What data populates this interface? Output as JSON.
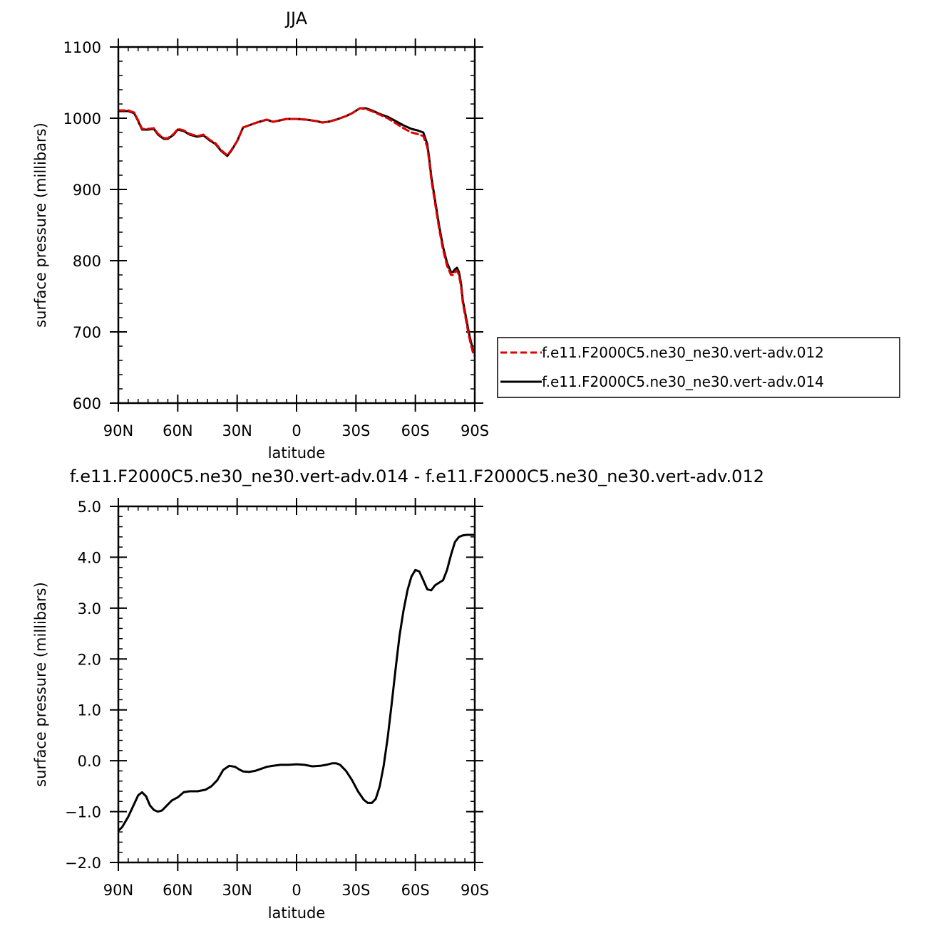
{
  "chart_data": [
    {
      "type": "line",
      "title": "JJA",
      "xlabel": "latitude",
      "ylabel": "surface pressure (millibars)",
      "xlim": [
        90,
        -90
      ],
      "ylim": [
        600,
        1100
      ],
      "xticks": [
        90,
        60,
        30,
        0,
        -30,
        -60,
        -90
      ],
      "xtick_labels": [
        "90N",
        "60N",
        "30N",
        "0",
        "30S",
        "60S",
        "90S"
      ],
      "yticks": [
        600,
        700,
        800,
        900,
        1000,
        1100
      ],
      "ytick_labels": [
        "600",
        "700",
        "800",
        "900",
        "1000",
        "1100"
      ],
      "grid": false,
      "legend_position": "right",
      "series": [
        {
          "name": "f.e11.F2000C5.ne30_ne30.vert-adv.012",
          "color": "#e00000",
          "dash": "dashed",
          "x": [
            90,
            85,
            82,
            80,
            78,
            75,
            72,
            70,
            67,
            65,
            62,
            60,
            57,
            54,
            50,
            47,
            44,
            41,
            38,
            35,
            33,
            30,
            27,
            24,
            20,
            15,
            12,
            10,
            5,
            0,
            -5,
            -10,
            -13,
            -16,
            -20,
            -25,
            -28,
            -32,
            -35,
            -38,
            -42,
            -46,
            -50,
            -54,
            -58,
            -61,
            -64,
            -66,
            -67,
            -68,
            -70,
            -72,
            -74,
            -76,
            -78,
            -79,
            -80,
            -81,
            -82,
            -83,
            -84,
            -85,
            -86,
            -87,
            -88,
            -89,
            -90
          ],
          "y": [
            1011,
            1011,
            1008,
            997,
            985,
            985,
            986,
            978,
            972,
            972,
            978,
            985,
            983,
            978,
            975,
            977,
            970,
            965,
            955,
            948,
            955,
            968,
            987,
            990,
            994,
            998,
            995,
            996,
            999,
            999,
            998,
            996,
            994,
            995,
            998,
            1003,
            1007,
            1014,
            1013,
            1010,
            1005,
            1000,
            993,
            986,
            980,
            978,
            975,
            960,
            940,
            915,
            880,
            845,
            815,
            793,
            780,
            780,
            784,
            786,
            780,
            765,
            740,
            725,
            710,
            695,
            683,
            672,
            666
          ]
        },
        {
          "name": "f.e11.F2000C5.ne30_ne30.vert-adv.014",
          "color": "#000000",
          "dash": "solid",
          "x": [
            90,
            85,
            82,
            80,
            78,
            75,
            72,
            70,
            67,
            65,
            62,
            60,
            57,
            54,
            50,
            47,
            44,
            41,
            38,
            35,
            33,
            30,
            27,
            24,
            20,
            15,
            12,
            10,
            5,
            0,
            -5,
            -10,
            -13,
            -16,
            -20,
            -25,
            -28,
            -32,
            -35,
            -38,
            -42,
            -46,
            -50,
            -54,
            -58,
            -61,
            -64,
            -66,
            -67,
            -68,
            -70,
            -72,
            -74,
            -76,
            -78,
            -79,
            -80,
            -81,
            -82,
            -83,
            -84,
            -85,
            -86,
            -87,
            -88,
            -89,
            -90
          ],
          "y": [
            1010,
            1010,
            1007,
            996,
            984,
            984,
            985,
            977,
            971,
            971,
            977,
            984,
            982,
            977,
            974,
            976,
            969,
            964,
            954,
            947,
            954,
            968,
            987,
            990,
            994,
            998,
            995,
            996,
            999,
            999,
            998,
            996,
            994,
            995,
            998,
            1003,
            1007,
            1014,
            1014,
            1011,
            1006,
            1002,
            996,
            990,
            985,
            983,
            980,
            964,
            944,
            919,
            884,
            849,
            819,
            797,
            784,
            784,
            788,
            790,
            784,
            769,
            744,
            729,
            714,
            699,
            687,
            676,
            670
          ]
        }
      ]
    },
    {
      "type": "line",
      "title": "f.e11.F2000C5.ne30_ne30.vert-adv.014 - f.e11.F2000C5.ne30_ne30.vert-adv.012",
      "xlabel": "latitude",
      "ylabel": "surface pressure (millibars)",
      "xlim": [
        90,
        -90
      ],
      "ylim": [
        -2.0,
        5.0
      ],
      "xticks": [
        90,
        60,
        30,
        0,
        -30,
        -60,
        -90
      ],
      "xtick_labels": [
        "90N",
        "60N",
        "30N",
        "0",
        "30S",
        "60S",
        "90S"
      ],
      "yticks": [
        -2.0,
        -1.0,
        0.0,
        1.0,
        2.0,
        3.0,
        4.0,
        5.0
      ],
      "ytick_labels": [
        "−2.0",
        "−1.0",
        "0.0",
        "1.0",
        "2.0",
        "3.0",
        "4.0",
        "5.0"
      ],
      "grid": false,
      "series": [
        {
          "color": "#000000",
          "dash": "solid",
          "x": [
            90,
            88,
            85,
            82,
            80,
            78,
            76,
            74,
            72,
            70,
            68,
            66,
            63,
            60,
            57,
            54,
            50,
            46,
            43,
            40,
            37,
            34,
            31,
            29,
            27,
            24,
            21,
            18,
            15,
            12,
            8,
            4,
            0,
            -4,
            -8,
            -12,
            -15,
            -18,
            -20,
            -22,
            -25,
            -28,
            -31,
            -34,
            -36,
            -38,
            -40,
            -42,
            -44,
            -46,
            -48,
            -50,
            -52,
            -54,
            -56,
            -58,
            -60,
            -62,
            -64,
            -66,
            -68,
            -70,
            -72,
            -74,
            -76,
            -78,
            -80,
            -82,
            -84,
            -86,
            -88,
            -90
          ],
          "y": [
            -1.38,
            -1.3,
            -1.1,
            -0.85,
            -0.68,
            -0.62,
            -0.7,
            -0.88,
            -0.97,
            -1.0,
            -0.98,
            -0.9,
            -0.78,
            -0.72,
            -0.62,
            -0.6,
            -0.6,
            -0.57,
            -0.5,
            -0.38,
            -0.18,
            -0.1,
            -0.12,
            -0.17,
            -0.21,
            -0.22,
            -0.2,
            -0.16,
            -0.12,
            -0.1,
            -0.08,
            -0.08,
            -0.07,
            -0.08,
            -0.11,
            -0.1,
            -0.08,
            -0.05,
            -0.05,
            -0.08,
            -0.2,
            -0.38,
            -0.6,
            -0.77,
            -0.83,
            -0.83,
            -0.75,
            -0.5,
            -0.1,
            0.45,
            1.1,
            1.8,
            2.45,
            2.95,
            3.35,
            3.62,
            3.75,
            3.72,
            3.55,
            3.37,
            3.35,
            3.45,
            3.5,
            3.55,
            3.75,
            4.05,
            4.3,
            4.4,
            4.43,
            4.44,
            4.44,
            4.44
          ]
        }
      ]
    }
  ]
}
